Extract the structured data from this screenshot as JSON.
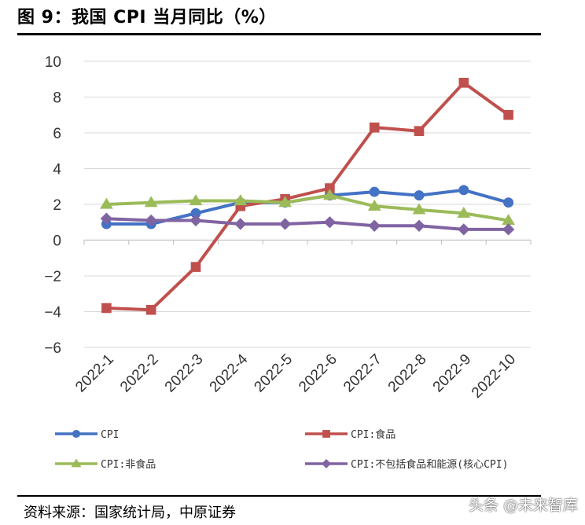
{
  "figure": {
    "title": "图 9：我国 CPI 当月同比（%）",
    "source": "资料来源：国家统计局，中原证券",
    "watermark": "头条 @未来智库"
  },
  "chart_data": {
    "type": "line",
    "title": "",
    "xlabel": "",
    "ylabel": "",
    "categories": [
      "2022-1",
      "2022-2",
      "2022-3",
      "2022-4",
      "2022-5",
      "2022-6",
      "2022-7",
      "2022-8",
      "2022-9",
      "2022-10"
    ],
    "ylim": [
      -6,
      10
    ],
    "yticks": [
      -6,
      -4,
      -2,
      0,
      2,
      4,
      6,
      8,
      10
    ],
    "ytick_labels": [
      "−6",
      "−4",
      "−2",
      "0",
      "2",
      "4",
      "6",
      "8",
      "10"
    ],
    "grid": "horizontal",
    "legend_position": "bottom",
    "series": [
      {
        "name": "CPI",
        "color": "#4472C4",
        "marker": "circle",
        "values": [
          0.9,
          0.9,
          1.5,
          2.1,
          2.1,
          2.5,
          2.7,
          2.5,
          2.8,
          2.1
        ]
      },
      {
        "name": "CPI:食品",
        "color": "#C0504D",
        "marker": "square",
        "values": [
          -3.8,
          -3.9,
          -1.5,
          1.9,
          2.3,
          2.9,
          6.3,
          6.1,
          8.8,
          7.0
        ]
      },
      {
        "name": "CPI:非食品",
        "color": "#9BBB59",
        "marker": "triangle",
        "values": [
          2.0,
          2.1,
          2.2,
          2.2,
          2.1,
          2.5,
          1.9,
          1.7,
          1.5,
          1.1
        ]
      },
      {
        "name": "CPI:不包括食品和能源(核心CPI)",
        "color": "#8064A2",
        "marker": "diamond",
        "values": [
          1.2,
          1.1,
          1.1,
          0.9,
          0.9,
          1.0,
          0.8,
          0.8,
          0.6,
          0.6
        ]
      }
    ]
  }
}
